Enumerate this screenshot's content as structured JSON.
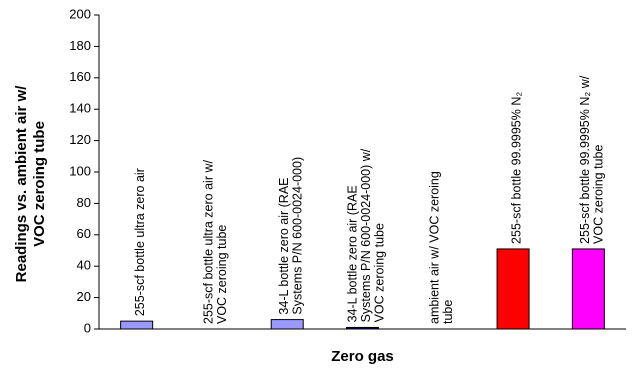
{
  "chart_data": {
    "type": "bar",
    "title": "",
    "xlabel": "Zero gas",
    "ylabel_lines": [
      "Readings vs. ambient air w/",
      "VOC zeroing tube"
    ],
    "ylim": [
      0,
      200
    ],
    "yticks": [
      0,
      20,
      40,
      60,
      80,
      100,
      120,
      140,
      160,
      180,
      200
    ],
    "grid": false,
    "legend": "none",
    "categories": [
      {
        "lines": [
          "255-scf bottle ultra zero air"
        ],
        "label": "255-scf bottle ultra zero air",
        "value": 5,
        "color": "#9999ff"
      },
      {
        "lines": [
          "255-scf bottle ultra zero air w/",
          "VOC zeroing tube"
        ],
        "label": "255-scf bottle ultra zero air w/ VOC zeroing tube",
        "value": 0,
        "color": "#9999ff"
      },
      {
        "lines": [
          "34-L bottle zero air (RAE",
          "Systems P/N 600-0024-000)"
        ],
        "label": "34-L bottle zero air (RAE Systems P/N 600-0024-000)",
        "value": 6,
        "color": "#9999ff"
      },
      {
        "lines": [
          "34-L bottle zero air (RAE",
          "Systems P/N 600-0024-000) w/",
          "VOC zeroing tube"
        ],
        "label": "34-L bottle zero air (RAE Systems P/N 600-0024-000) w/ VOC zeroing tube",
        "value": 1,
        "color": "#000080"
      },
      {
        "lines": [
          "ambient air w/ VOC zeroing",
          "tube"
        ],
        "label": "ambient air w/ VOC zeroing tube",
        "value": 0,
        "color": "#9999ff"
      },
      {
        "lines": [
          "255-scf bottle 99.9995% N₂"
        ],
        "label": "255-scf bottle 99.9995% N₂",
        "value": 51,
        "color": "#ff0000"
      },
      {
        "lines": [
          "255-scf bottle 99.9995% N₂ w/",
          "VOC zeroing tube"
        ],
        "label": "255-scf bottle 99.9995% N₂ w/ VOC zeroing tube",
        "value": 51,
        "color": "#ff00ff"
      }
    ]
  }
}
